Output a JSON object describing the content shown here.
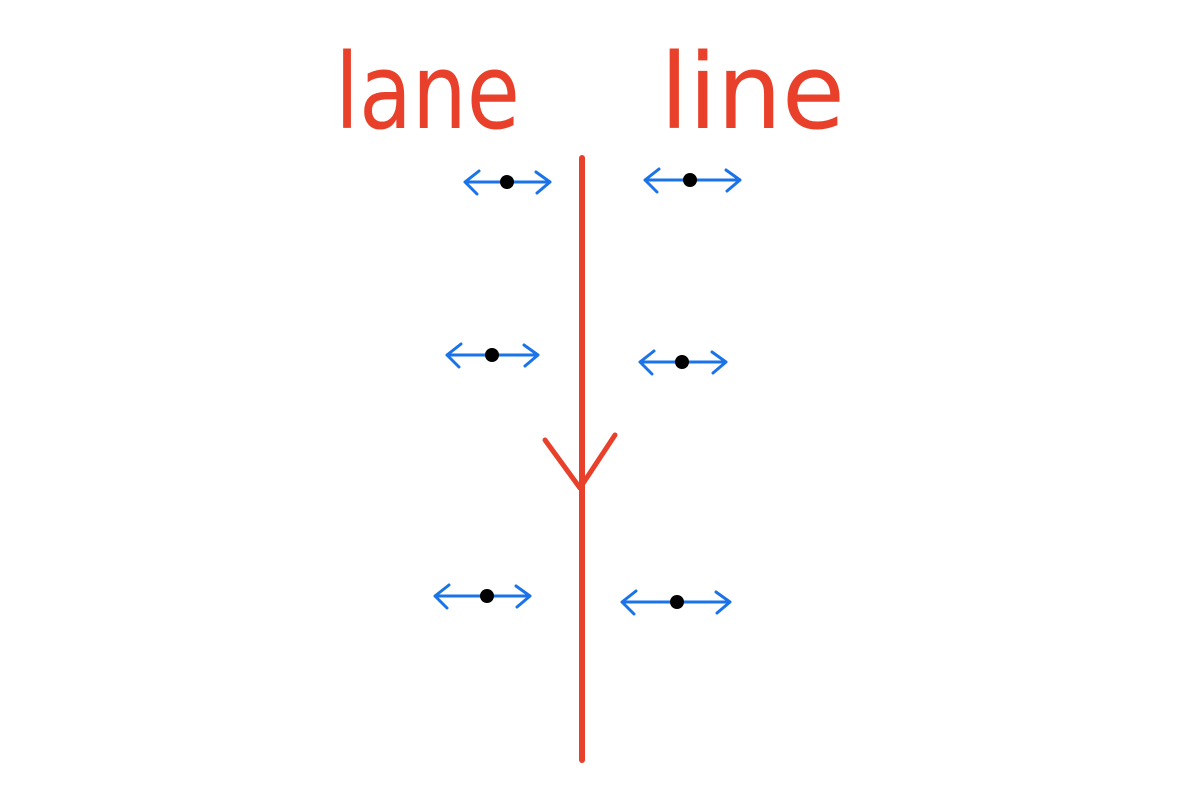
{
  "labels": {
    "left": "lane",
    "right": "line"
  }
}
